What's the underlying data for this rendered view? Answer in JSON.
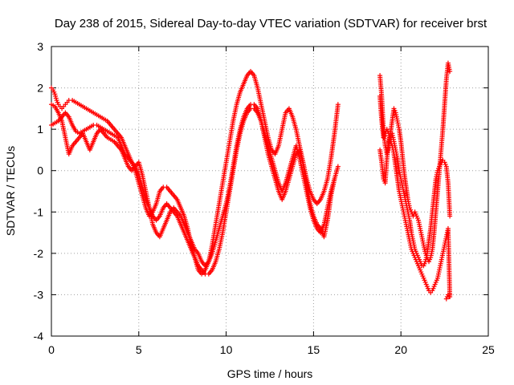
{
  "chart_data": {
    "type": "scatter",
    "title": "Day 238 of 2015, Sidereal Day-to-day VTEC variation (SDTVAR) for receiver brst",
    "xlabel": "GPS time / hours",
    "ylabel": "SDTVAR / TECUs",
    "xlim": [
      0,
      25
    ],
    "ylim": [
      -4,
      3
    ],
    "xticks": [
      0,
      5,
      10,
      15,
      20,
      25
    ],
    "yticks": [
      -4,
      -3,
      -2,
      -1,
      0,
      1,
      2,
      3
    ],
    "grid": true,
    "marker": "+",
    "series": [
      {
        "name": "SDTVAR",
        "color": "#ff0000",
        "segments": [
          {
            "x": [
              0.0,
              0.1,
              0.2,
              0.3,
              0.4,
              0.5,
              0.6,
              0.7,
              0.8,
              0.9,
              1.0,
              1.2,
              1.4,
              1.6,
              1.8,
              2.0,
              2.2,
              2.4,
              2.6,
              2.8,
              3.0,
              3.2,
              3.4,
              3.6,
              3.8,
              4.0,
              4.2,
              4.4,
              4.6,
              4.8,
              5.0,
              5.2,
              5.4,
              5.6,
              5.8,
              6.0,
              6.2,
              6.4,
              6.6,
              6.8,
              7.0,
              7.2,
              7.4,
              7.6,
              7.8,
              8.0,
              8.2,
              8.4,
              8.6,
              8.8,
              9.0,
              9.2,
              9.4,
              9.6,
              9.8,
              10.0,
              10.2,
              10.4,
              10.6,
              10.8,
              11.0,
              11.2,
              11.4,
              11.6,
              11.8,
              12.0,
              12.2,
              12.4,
              12.6,
              12.8,
              13.0,
              13.2,
              13.4,
              13.6,
              13.8,
              14.0,
              14.2,
              14.4,
              14.6,
              14.8,
              15.0,
              15.2,
              15.4,
              15.6,
              15.8,
              16.0,
              16.2,
              16.4
            ],
            "y": [
              2.0,
              1.95,
              1.85,
              1.7,
              1.6,
              1.55,
              1.5,
              1.55,
              1.6,
              1.65,
              1.7,
              1.7,
              1.65,
              1.6,
              1.55,
              1.5,
              1.45,
              1.4,
              1.35,
              1.3,
              1.25,
              1.2,
              1.1,
              1.0,
              0.9,
              0.8,
              0.6,
              0.4,
              0.2,
              0.0,
              -0.3,
              -0.6,
              -0.9,
              -1.1,
              -1.0,
              -0.8,
              -0.5,
              -0.4,
              -0.4,
              -0.5,
              -0.6,
              -0.7,
              -0.9,
              -1.1,
              -1.4,
              -1.8,
              -2.1,
              -2.4,
              -2.5,
              -2.4,
              -2.2,
              -1.8,
              -1.3,
              -0.8,
              -0.3,
              0.2,
              0.7,
              1.2,
              1.6,
              1.9,
              2.1,
              2.3,
              2.4,
              2.3,
              2.0,
              1.6,
              1.2,
              0.8,
              0.5,
              0.4,
              0.6,
              1.0,
              1.4,
              1.5,
              1.3,
              1.0,
              0.6,
              0.2,
              -0.2,
              -0.5,
              -0.7,
              -0.8,
              -0.7,
              -0.5,
              -0.2,
              0.3,
              0.9,
              1.6
            ]
          },
          {
            "x": [
              0.0,
              0.2,
              0.4,
              0.6,
              0.8,
              1.0,
              1.2,
              1.4,
              1.6,
              1.8,
              2.0,
              2.2,
              2.4,
              2.6,
              2.8,
              3.0,
              3.2,
              3.4,
              3.6,
              3.8,
              4.0,
              4.2,
              4.4,
              4.6,
              4.8,
              5.0,
              5.2,
              5.4,
              5.6,
              5.8,
              6.0,
              6.2,
              6.4,
              6.6,
              6.8,
              7.0,
              7.2,
              7.4,
              7.6,
              7.8,
              8.0,
              8.2,
              8.4,
              8.6,
              8.8,
              9.0,
              9.2,
              9.4,
              9.6,
              9.8,
              10.0,
              10.2,
              10.4,
              10.6,
              10.8,
              11.0,
              11.2,
              11.4,
              11.6,
              11.8,
              12.0,
              12.2,
              12.4,
              12.6,
              12.8,
              13.0,
              13.2,
              13.4,
              13.6,
              13.8,
              14.0,
              14.2,
              14.4,
              14.6,
              14.8,
              15.0,
              15.2,
              15.4,
              15.6,
              15.8,
              16.0,
              16.2,
              16.4
            ],
            "y": [
              1.1,
              1.15,
              1.2,
              1.3,
              1.4,
              1.3,
              1.1,
              0.95,
              0.9,
              0.95,
              1.0,
              1.05,
              1.1,
              1.1,
              1.05,
              1.0,
              0.95,
              0.9,
              0.85,
              0.8,
              0.6,
              0.4,
              0.3,
              0.2,
              0.1,
              -0.1,
              -0.4,
              -0.7,
              -0.9,
              -1.1,
              -1.2,
              -1.1,
              -0.9,
              -0.8,
              -0.9,
              -1.0,
              -1.1,
              -1.3,
              -1.5,
              -1.7,
              -1.9,
              -2.1,
              -2.3,
              -2.4,
              -2.5,
              -2.5,
              -2.4,
              -2.2,
              -1.9,
              -1.5,
              -1.0,
              -0.5,
              0.0,
              0.5,
              0.9,
              1.2,
              1.4,
              1.5,
              1.5,
              1.4,
              1.2,
              0.9,
              0.6,
              0.3,
              0.0,
              -0.3,
              -0.5,
              -0.3,
              0.0,
              0.3,
              0.6,
              0.3,
              -0.1,
              -0.5,
              -0.9,
              -1.2,
              -1.4,
              -1.5,
              -1.3,
              -0.9,
              -0.5,
              -0.2,
              0.1
            ]
          },
          {
            "x": [
              0.0,
              0.2,
              0.4,
              0.6,
              0.8,
              1.0,
              1.2,
              1.4,
              1.6,
              1.8,
              2.0,
              2.2,
              2.4,
              2.6,
              2.8,
              3.0,
              3.2,
              3.4,
              3.6,
              3.8,
              4.0,
              4.2,
              4.4,
              4.6,
              4.8,
              5.0,
              5.2,
              5.4,
              5.6,
              5.8,
              6.0,
              6.2,
              6.4,
              6.6,
              6.8,
              7.0,
              7.2,
              7.4,
              7.6,
              7.8,
              8.0,
              8.2,
              8.4,
              8.6,
              8.8,
              9.0,
              9.2,
              9.4,
              9.6,
              9.8,
              10.0,
              10.2,
              10.4,
              10.6,
              10.8,
              11.0,
              11.2,
              11.4,
              11.6,
              11.8,
              12.0,
              12.2,
              12.4,
              12.6,
              12.8,
              13.0,
              13.2,
              13.4,
              13.6,
              13.8,
              14.0,
              14.2,
              14.4,
              14.6,
              14.8,
              15.0,
              15.2,
              15.4,
              15.6,
              15.8,
              16.0,
              16.2
            ],
            "y": [
              1.6,
              1.55,
              1.4,
              1.2,
              0.8,
              0.4,
              0.6,
              0.7,
              0.8,
              0.9,
              0.7,
              0.5,
              0.7,
              0.9,
              1.0,
              0.9,
              0.8,
              0.75,
              0.7,
              0.6,
              0.5,
              0.3,
              0.1,
              0.0,
              0.1,
              0.2,
              -0.1,
              -0.5,
              -0.9,
              -1.3,
              -1.5,
              -1.6,
              -1.4,
              -1.2,
              -1.0,
              -0.9,
              -1.0,
              -1.1,
              -1.3,
              -1.5,
              -1.7,
              -1.9,
              -2.0,
              -2.2,
              -2.3,
              -2.2,
              -2.0,
              -1.7,
              -1.4,
              -1.1,
              -0.8,
              -0.4,
              0.1,
              0.6,
              1.0,
              1.3,
              1.5,
              1.6,
              1.6,
              1.5,
              1.2,
              0.8,
              0.4,
              0.1,
              -0.2,
              -0.5,
              -0.7,
              -0.5,
              -0.2,
              0.1,
              0.4,
              0.5,
              0.2,
              -0.3,
              -0.8,
              -1.1,
              -1.3,
              -1.4,
              -1.6,
              -1.2,
              -0.6,
              -0.2
            ]
          },
          {
            "x": [
              18.8,
              18.9,
              19.0,
              19.1,
              19.2,
              19.3,
              19.4,
              19.5,
              19.6,
              19.7,
              19.8,
              19.9,
              20.0,
              20.1,
              20.2,
              20.3,
              20.4,
              20.5,
              20.6,
              20.7,
              20.8,
              20.9,
              21.0,
              21.1,
              21.2,
              21.3,
              21.4,
              21.5,
              21.6,
              21.7,
              21.8,
              21.9,
              22.0,
              22.1,
              22.2,
              22.3,
              22.4,
              22.5,
              22.6,
              22.7,
              22.8
            ],
            "y": [
              2.3,
              1.8,
              1.0,
              0.6,
              0.4,
              0.6,
              0.9,
              1.2,
              1.5,
              1.4,
              1.2,
              1.0,
              0.7,
              0.3,
              -0.1,
              -0.4,
              -0.7,
              -0.9,
              -1.0,
              -1.1,
              -1.0,
              -1.1,
              -1.2,
              -1.4,
              -1.6,
              -1.8,
              -2.0,
              -2.1,
              -2.2,
              -2.1,
              -1.9,
              -1.5,
              -1.0,
              -0.5,
              0.0,
              0.5,
              1.0,
              1.6,
              2.2,
              2.6,
              2.4
            ]
          },
          {
            "x": [
              18.8,
              18.9,
              19.0,
              19.1,
              19.2,
              19.3,
              19.4,
              19.5,
              19.6,
              19.7,
              19.8,
              19.9,
              20.0,
              20.1,
              20.2,
              20.3,
              20.4,
              20.5,
              20.6,
              20.7,
              20.8,
              20.9,
              21.0,
              21.1,
              21.2,
              21.3,
              21.4,
              21.5,
              21.6,
              21.7,
              21.8,
              21.9,
              22.0,
              22.1,
              22.2,
              22.3,
              22.4,
              22.5,
              22.6,
              22.7,
              22.8
            ],
            "y": [
              0.5,
              0.2,
              -0.2,
              -0.3,
              0.3,
              0.7,
              0.8,
              0.9,
              0.7,
              0.5,
              0.3,
              0.0,
              -0.2,
              -0.4,
              -0.6,
              -0.8,
              -1.0,
              -1.2,
              -1.5,
              -1.7,
              -1.9,
              -2.0,
              -2.1,
              -2.2,
              -2.3,
              -2.3,
              -2.2,
              -2.0,
              -1.7,
              -1.4,
              -1.0,
              -0.6,
              -0.2,
              0.0,
              0.1,
              0.2,
              0.25,
              0.2,
              0.1,
              -0.3,
              -1.1
            ]
          },
          {
            "x": [
              18.8,
              18.9,
              19.0,
              19.1,
              19.2,
              19.3,
              19.4,
              19.5,
              19.6,
              19.7,
              19.8,
              19.9,
              20.0,
              20.1,
              20.2,
              20.3,
              20.4,
              20.5,
              20.6,
              20.7,
              20.8,
              20.9,
              21.0,
              21.1,
              21.2,
              21.3,
              21.4,
              21.5,
              21.6,
              21.7,
              21.8,
              21.9,
              22.0,
              22.1,
              22.2,
              22.3,
              22.4,
              22.5,
              22.6,
              22.7,
              22.8
            ],
            "y": [
              1.8,
              1.2,
              0.8,
              0.9,
              1.0,
              0.9,
              0.7,
              0.6,
              0.4,
              0.1,
              -0.2,
              -0.5,
              -0.7,
              -0.9,
              -1.1,
              -1.3,
              -1.5,
              -1.7,
              -1.9,
              -2.0,
              -2.1,
              -2.2,
              -2.3,
              -2.4,
              -2.5,
              -2.6,
              -2.7,
              -2.8,
              -2.9,
              -2.95,
              -2.9,
              -2.8,
              -2.7,
              -2.6,
              -2.4,
              -2.2,
              -2.0,
              -1.8,
              -1.6,
              -1.4,
              -3.05
            ]
          },
          {
            "x": [
              22.6,
              22.65,
              22.7,
              22.75,
              22.8
            ],
            "y": [
              -3.1,
              -3.05,
              -3.0,
              -3.05,
              -3.0
            ]
          }
        ]
      }
    ]
  }
}
